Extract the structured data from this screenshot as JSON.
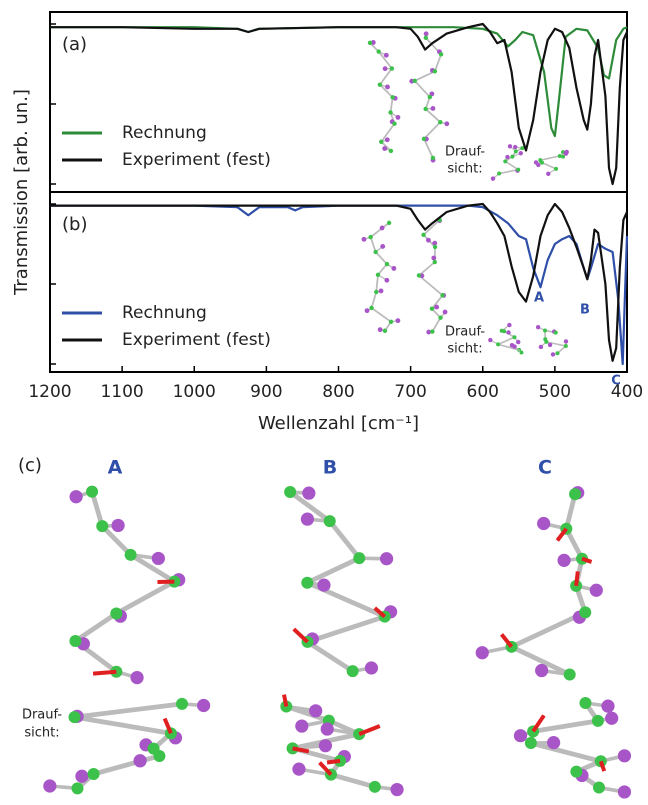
{
  "chart_data": [
    {
      "type": "line",
      "panel_label": "(a)",
      "ylabel": "Transmission [arb. un.]",
      "xlim": [
        1200,
        400
      ],
      "ylim": [
        -0.05,
        1.075
      ],
      "yticks": [
        0,
        0.5,
        1
      ],
      "series": [
        {
          "name": "Rechnung",
          "color": "#2e8b3a",
          "x": [
            1200,
            1000,
            940,
            925,
            910,
            800,
            700,
            640,
            600,
            580,
            565,
            555,
            545,
            530,
            515,
            505,
            500,
            495,
            485,
            470,
            455,
            440,
            432,
            425,
            415,
            405,
            400
          ],
          "values": [
            0.98,
            0.98,
            0.97,
            0.95,
            0.97,
            0.98,
            0.98,
            0.98,
            0.97,
            0.94,
            0.86,
            0.9,
            0.95,
            0.93,
            0.7,
            0.35,
            0.3,
            0.5,
            0.92,
            0.97,
            0.96,
            0.85,
            0.68,
            0.66,
            0.9,
            0.97,
            0.98
          ]
        },
        {
          "name": "Experiment (fest)",
          "color": "#111111",
          "x": [
            1200,
            1100,
            1000,
            940,
            925,
            910,
            800,
            720,
            700,
            690,
            680,
            670,
            650,
            620,
            600,
            590,
            580,
            570,
            560,
            550,
            540,
            530,
            520,
            510,
            500,
            490,
            480,
            470,
            460,
            455,
            450,
            445,
            440,
            430,
            425,
            420,
            415,
            410,
            405,
            400
          ],
          "values": [
            0.98,
            0.98,
            0.97,
            0.97,
            0.95,
            0.97,
            0.98,
            0.98,
            0.97,
            0.92,
            0.84,
            0.88,
            0.94,
            0.98,
            1.0,
            0.95,
            0.88,
            0.9,
            0.7,
            0.35,
            0.21,
            0.4,
            0.7,
            0.9,
            0.97,
            0.95,
            0.85,
            0.6,
            0.4,
            0.34,
            0.5,
            0.8,
            0.9,
            0.55,
            0.1,
            0.0,
            0.1,
            0.6,
            0.9,
            0.95
          ]
        }
      ],
      "legend": "left",
      "top_view_label": [
        "Drauf-",
        "sicht:"
      ]
    },
    {
      "type": "line",
      "panel_label": "(b)",
      "xlabel": "Wellenzahl  [cm⁻¹]",
      "xlim": [
        1200,
        400
      ],
      "xticks": [
        1200,
        1100,
        1000,
        900,
        800,
        700,
        600,
        500,
        400
      ],
      "ylim": [
        -0.05,
        1.075
      ],
      "yticks": [
        0,
        0.5,
        1
      ],
      "series": [
        {
          "name": "Rechnung",
          "color": "#2f4fa8",
          "x": [
            1200,
            1000,
            940,
            925,
            910,
            870,
            860,
            850,
            800,
            700,
            620,
            600,
            580,
            565,
            550,
            540,
            530,
            520,
            510,
            500,
            490,
            480,
            470,
            460,
            455,
            450,
            440,
            430,
            420,
            412,
            406,
            403,
            400
          ],
          "values": [
            0.99,
            0.99,
            0.98,
            0.93,
            0.98,
            0.98,
            0.96,
            0.98,
            0.99,
            0.99,
            0.99,
            0.98,
            0.93,
            0.88,
            0.8,
            0.78,
            0.6,
            0.48,
            0.65,
            0.75,
            0.78,
            0.8,
            0.75,
            0.6,
            0.53,
            0.6,
            0.75,
            0.72,
            0.7,
            0.4,
            0.0,
            0.4,
            0.8
          ]
        },
        {
          "name": "Experiment (fest)",
          "color": "#111111",
          "x": [
            1200,
            1100,
            1000,
            900,
            800,
            720,
            700,
            690,
            680,
            670,
            650,
            620,
            600,
            590,
            580,
            570,
            560,
            550,
            540,
            530,
            520,
            510,
            500,
            490,
            480,
            470,
            460,
            455,
            450,
            445,
            440,
            430,
            425,
            420,
            415,
            410,
            405,
            400
          ],
          "values": [
            0.99,
            0.99,
            0.99,
            0.99,
            0.99,
            0.99,
            0.97,
            0.9,
            0.84,
            0.88,
            0.95,
            0.99,
            1.0,
            0.95,
            0.88,
            0.8,
            0.61,
            0.45,
            0.39,
            0.55,
            0.8,
            0.93,
            1.0,
            0.95,
            0.85,
            0.73,
            0.6,
            0.53,
            0.65,
            0.84,
            0.82,
            0.5,
            0.15,
            0.02,
            0.1,
            0.6,
            0.9,
            0.95
          ]
        }
      ],
      "annotations": [
        "A",
        "B",
        "C"
      ],
      "legend": "left",
      "top_view_label": [
        "Drauf-",
        "sicht:"
      ]
    }
  ],
  "figure_c": {
    "label": "(c)",
    "modes": [
      "A",
      "B",
      "C"
    ],
    "top_view_label": [
      "Drauf-",
      "sicht:"
    ]
  }
}
